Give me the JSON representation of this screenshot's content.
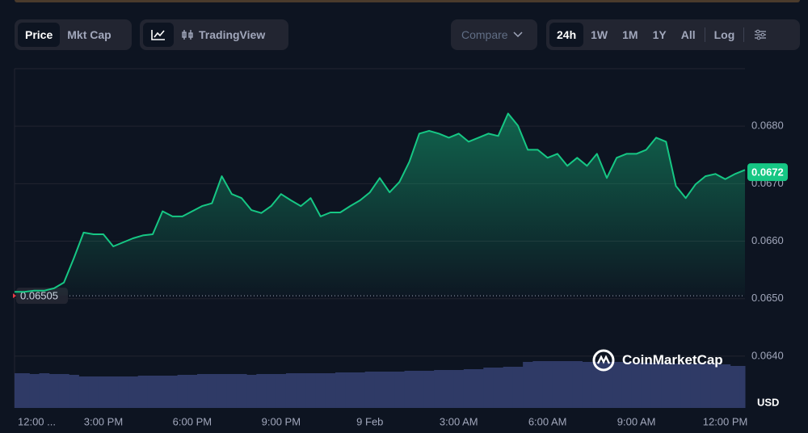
{
  "toolbar": {
    "view_tabs": [
      "Price",
      "Mkt Cap"
    ],
    "tradingview": "TradingView",
    "compare": "Compare",
    "ranges": [
      "24h",
      "1W",
      "1M",
      "1Y",
      "All"
    ],
    "log": "Log"
  },
  "watermark": "CoinMarketCap",
  "chart_data": {
    "type": "line",
    "categories": [
      "12:00 ...",
      null,
      null,
      null,
      null,
      null,
      null,
      null,
      null,
      "3:00 PM",
      null,
      null,
      null,
      null,
      null,
      null,
      null,
      null,
      "6:00 PM",
      null,
      null,
      null,
      null,
      null,
      null,
      null,
      null,
      "9:00 PM",
      null,
      null,
      null,
      null,
      null,
      null,
      null,
      null,
      "9 Feb",
      null,
      null,
      null,
      null,
      null,
      null,
      null,
      null,
      "3:00 AM",
      null,
      null,
      null,
      null,
      null,
      null,
      null,
      null,
      "6:00 AM",
      null,
      null,
      null,
      null,
      null,
      null,
      null,
      null,
      "9:00 AM",
      null,
      null,
      null,
      null,
      null,
      null,
      null,
      null,
      "12:00 PM",
      null,
      null
    ],
    "series": [
      {
        "color": "#16c784",
        "values": [
          0.06512,
          0.06512,
          0.06514,
          0.06514,
          0.06518,
          0.06528,
          0.0657,
          0.06615,
          0.06612,
          0.06612,
          0.06591,
          0.06598,
          0.06605,
          0.0661,
          0.06612,
          0.06652,
          0.06643,
          0.06643,
          0.06652,
          0.06661,
          0.06666,
          0.06713,
          0.06682,
          0.06675,
          0.06654,
          0.06649,
          0.06661,
          0.06682,
          0.06671,
          0.06661,
          0.06675,
          0.06643,
          0.0665,
          0.0665,
          0.06661,
          0.06671,
          0.06685,
          0.0671,
          0.06685,
          0.06703,
          0.06738,
          0.06787,
          0.06792,
          0.06787,
          0.0678,
          0.06787,
          0.06773,
          0.0678,
          0.06787,
          0.06783,
          0.06822,
          0.06801,
          0.06759,
          0.06759,
          0.06745,
          0.06752,
          0.06731,
          0.06745,
          0.06731,
          0.06752,
          0.0671,
          0.06745,
          0.06752,
          0.06752,
          0.06759,
          0.0678,
          0.06773,
          0.06696,
          0.06675,
          0.06699,
          0.06713,
          0.06717,
          0.06708,
          0.06717,
          0.06724
        ]
      }
    ],
    "volume": {
      "color": "#2f3a66",
      "ylim": [
        0,
        100
      ],
      "values": [
        43,
        43,
        42,
        43,
        42,
        42,
        41,
        39,
        39,
        39,
        39,
        39,
        39,
        40,
        40,
        40,
        40,
        41,
        41,
        42,
        42,
        42,
        42,
        42,
        41,
        42,
        42,
        42,
        43,
        43,
        43,
        43,
        43,
        44,
        44,
        44,
        45,
        45,
        45,
        45,
        46,
        46,
        46,
        47,
        47,
        47,
        48,
        48,
        50,
        50,
        51,
        51,
        57,
        58,
        58,
        58,
        58,
        58,
        57,
        57,
        57,
        57,
        57,
        56,
        56,
        56,
        56,
        55,
        55,
        55,
        55,
        55,
        54,
        52,
        52
      ]
    },
    "open_price": 0.06505,
    "last_price": 0.0672,
    "currency": "USD",
    "ylim": [
      0.0631,
      0.069
    ],
    "yticks": [
      {
        "value": 0.064,
        "label": "0.0640"
      },
      {
        "value": 0.065,
        "label": "0.0650"
      },
      {
        "value": 0.066,
        "label": "0.0660"
      },
      {
        "value": 0.067,
        "label": "0.0670"
      },
      {
        "value": 0.068,
        "label": "0.0680"
      }
    ],
    "grid": true
  }
}
